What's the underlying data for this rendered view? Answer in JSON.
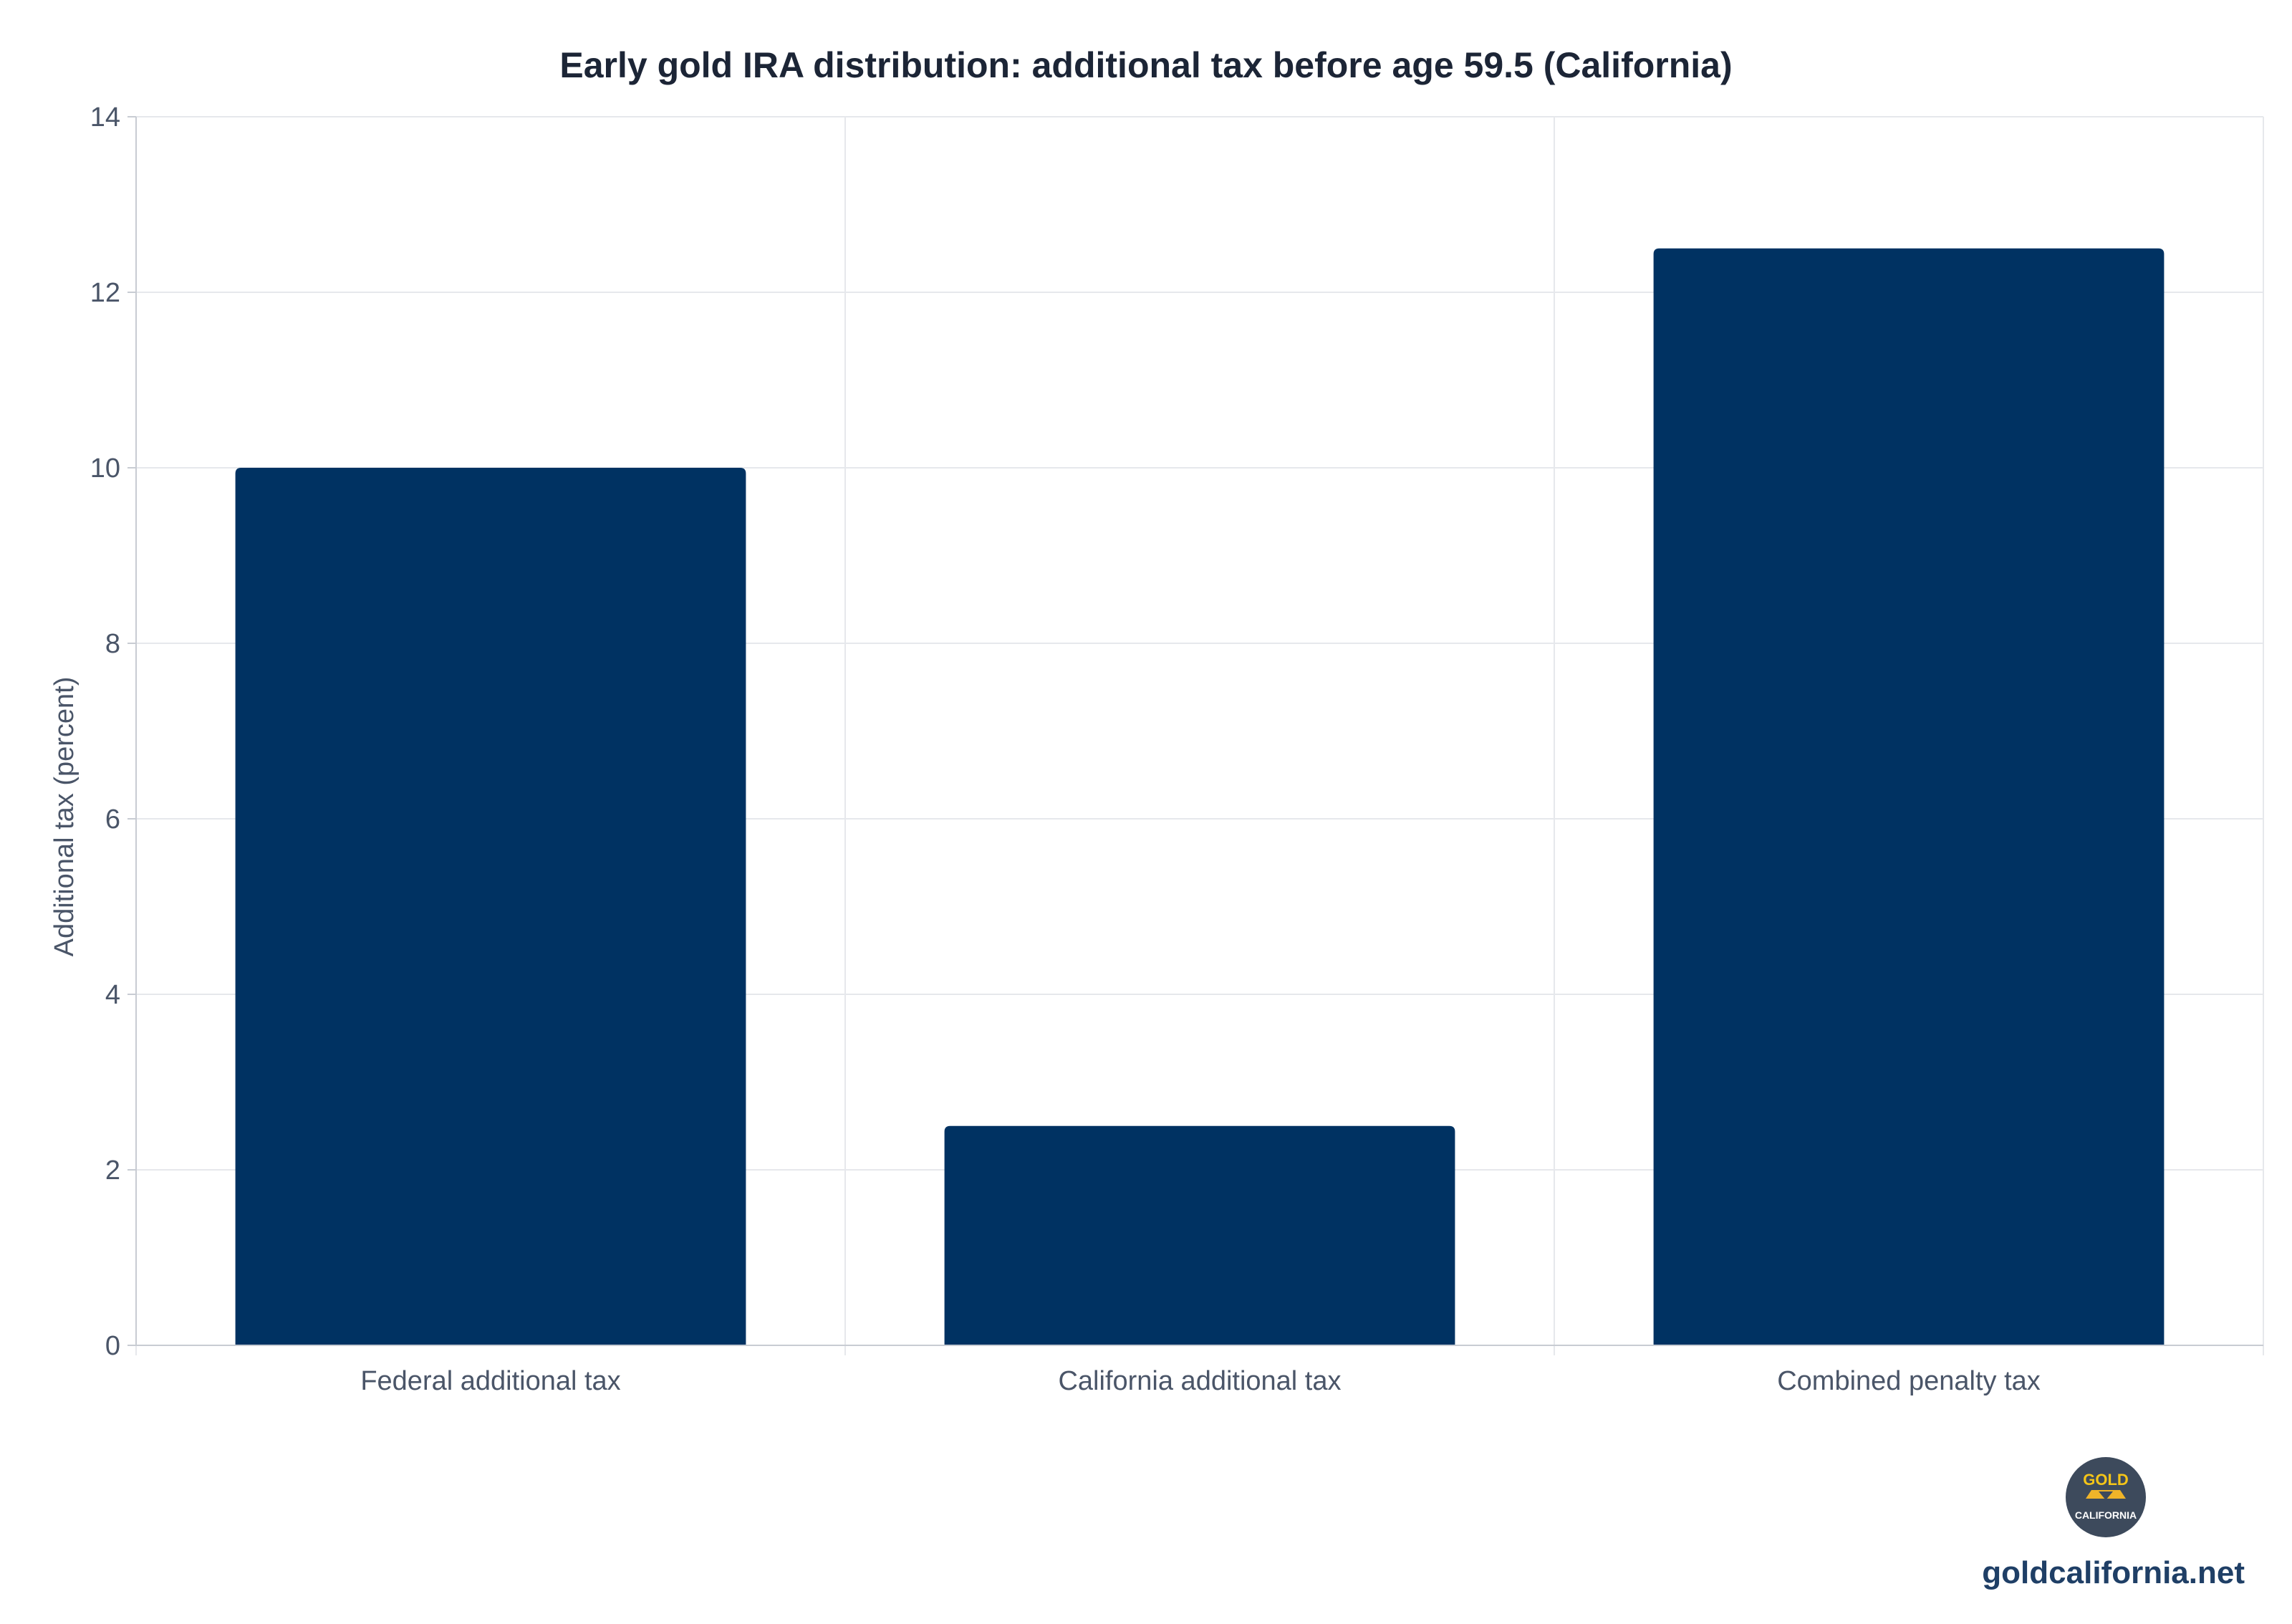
{
  "chart_data": {
    "type": "bar",
    "title": "Early gold IRA distribution: additional tax before age 59.5 (California)",
    "xlabel": "",
    "ylabel": "Additional tax (percent)",
    "categories": [
      "Federal additional tax",
      "California additional tax",
      "Combined penalty tax"
    ],
    "values": [
      10,
      2.5,
      12.5
    ],
    "ylim": [
      0,
      14
    ],
    "yticks": [
      "0",
      "2",
      "4",
      "6",
      "8",
      "10",
      "12",
      "14"
    ],
    "grid": true,
    "bar_color": "#003262"
  },
  "branding": {
    "logo_text_top": "GOLD",
    "logo_text_bottom": "CALIFORNIA",
    "site": "goldcalifornia.net"
  }
}
